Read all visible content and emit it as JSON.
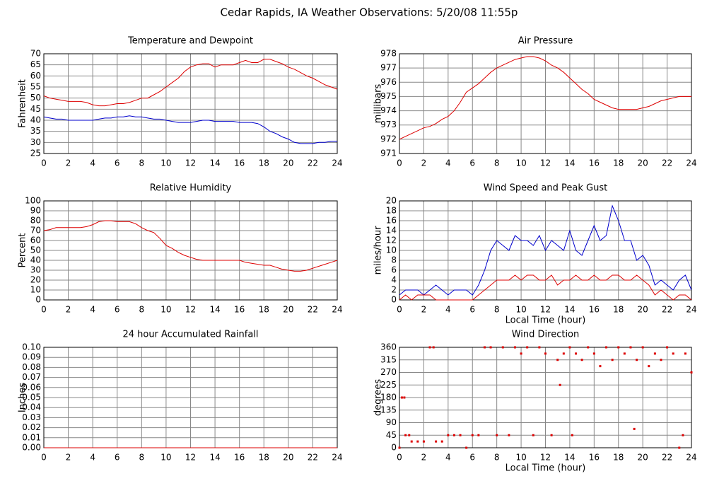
{
  "title": "Cedar Rapids, IA Weather Observations: 5/20/08 11:55p",
  "chart_data": [
    {
      "type": "line",
      "title": "Temperature and Dewpoint",
      "ylabel": "Fahrenheit",
      "x": [
        0,
        0.5,
        1,
        1.5,
        2,
        2.5,
        3,
        3.5,
        4,
        4.5,
        5,
        5.5,
        6,
        6.5,
        7,
        7.5,
        8,
        8.5,
        9,
        9.5,
        10,
        10.5,
        11,
        11.5,
        12,
        12.5,
        13,
        13.5,
        14,
        14.5,
        15,
        15.5,
        16,
        16.5,
        17,
        17.5,
        18,
        18.5,
        19,
        19.5,
        20,
        20.5,
        21,
        21.5,
        22,
        22.5,
        23,
        23.5,
        24
      ],
      "series": [
        {
          "color": "#dd0000",
          "values": [
            51,
            50,
            49.5,
            49,
            48.5,
            48.5,
            48.5,
            48,
            47,
            46.5,
            46.5,
            47,
            47.5,
            47.5,
            48,
            49,
            50,
            50,
            51.5,
            53,
            55,
            57,
            59,
            62,
            64,
            65,
            65.5,
            65.5,
            64,
            65,
            65,
            65,
            66,
            67,
            66,
            66,
            67.5,
            67.5,
            66.5,
            65.5,
            64,
            63,
            61.5,
            60,
            59,
            57.5,
            56,
            55,
            54
          ]
        },
        {
          "color": "#0000cc",
          "values": [
            41.5,
            41,
            40.5,
            40.5,
            40,
            40,
            40,
            40,
            40,
            40.5,
            41,
            41,
            41.5,
            41.5,
            42,
            41.5,
            41.5,
            41,
            40.5,
            40.5,
            40,
            39.5,
            39,
            39,
            39,
            39.5,
            40,
            40,
            39.5,
            39.5,
            39.5,
            39.5,
            39,
            39,
            39,
            38.5,
            37,
            35,
            34,
            32.5,
            31.5,
            30,
            29.5,
            29.5,
            29.5,
            30,
            30,
            30.5,
            30.5
          ]
        }
      ],
      "xlim": [
        0,
        24
      ],
      "xticks": [
        0,
        2,
        4,
        6,
        8,
        10,
        12,
        14,
        16,
        18,
        20,
        22,
        24
      ],
      "ylim": [
        25,
        70
      ],
      "yticks": [
        25,
        30,
        35,
        40,
        45,
        50,
        55,
        60,
        65,
        70
      ],
      "grid": true
    },
    {
      "type": "line",
      "title": "Air Pressure",
      "ylabel": "millibars",
      "x": [
        0,
        0.5,
        1,
        1.5,
        2,
        2.5,
        3,
        3.5,
        4,
        4.5,
        5,
        5.5,
        6,
        6.5,
        7,
        7.5,
        8,
        8.5,
        9,
        9.5,
        10,
        10.5,
        11,
        11.5,
        12,
        12.5,
        13,
        13.5,
        14,
        14.5,
        15,
        15.5,
        16,
        16.5,
        17,
        17.5,
        18,
        18.5,
        19,
        19.5,
        20,
        20.5,
        21,
        21.5,
        22,
        22.5,
        23,
        23.5,
        24
      ],
      "series": [
        {
          "color": "#dd0000",
          "values": [
            972,
            972.2,
            972.4,
            972.6,
            972.8,
            972.9,
            973.1,
            973.4,
            973.6,
            974,
            974.6,
            975.3,
            975.6,
            975.9,
            976.3,
            976.7,
            977,
            977.2,
            977.4,
            977.6,
            977.7,
            977.8,
            977.8,
            977.7,
            977.5,
            977.2,
            977,
            976.7,
            976.3,
            975.9,
            975.5,
            975.2,
            974.8,
            974.6,
            974.4,
            974.2,
            974.1,
            974.1,
            974.1,
            974.1,
            974.2,
            974.3,
            974.5,
            974.7,
            974.8,
            974.9,
            975,
            975,
            975
          ]
        }
      ],
      "xlim": [
        0,
        24
      ],
      "xticks": [
        0,
        2,
        4,
        6,
        8,
        10,
        12,
        14,
        16,
        18,
        20,
        22,
        24
      ],
      "ylim": [
        971,
        978
      ],
      "yticks": [
        971,
        972,
        973,
        974,
        975,
        976,
        977,
        978
      ],
      "grid": true
    },
    {
      "type": "line",
      "title": "Relative Humidity",
      "ylabel": "Percent",
      "x": [
        0,
        0.5,
        1,
        1.5,
        2,
        2.5,
        3,
        3.5,
        4,
        4.5,
        5,
        5.5,
        6,
        6.5,
        7,
        7.5,
        8,
        8.5,
        9,
        9.5,
        10,
        10.5,
        11,
        11.5,
        12,
        12.5,
        13,
        13.5,
        14,
        14.5,
        15,
        15.5,
        16,
        16.5,
        17,
        17.5,
        18,
        18.5,
        19,
        19.5,
        20,
        20.5,
        21,
        21.5,
        22,
        22.5,
        23,
        23.5,
        24
      ],
      "series": [
        {
          "color": "#dd0000",
          "values": [
            70,
            71,
            73,
            73,
            73,
            73,
            73,
            74,
            76,
            79,
            80,
            80,
            79,
            79,
            79,
            77,
            73,
            70,
            68,
            62,
            55,
            52,
            48,
            45,
            43,
            41,
            40,
            40,
            40,
            40,
            40,
            40,
            40,
            38,
            37,
            36,
            35,
            35,
            33,
            31,
            30,
            29,
            29,
            30,
            32,
            34,
            36,
            38,
            40
          ]
        }
      ],
      "xlim": [
        0,
        24
      ],
      "xticks": [
        0,
        2,
        4,
        6,
        8,
        10,
        12,
        14,
        16,
        18,
        20,
        22,
        24
      ],
      "ylim": [
        0,
        100
      ],
      "yticks": [
        0,
        10,
        20,
        30,
        40,
        50,
        60,
        70,
        80,
        90,
        100
      ],
      "grid": true
    },
    {
      "type": "line",
      "title": "Wind Speed and Peak Gust",
      "ylabel": "miles/hour",
      "xlabel": "Local Time (hour)",
      "x": [
        0,
        0.5,
        1,
        1.5,
        2,
        2.5,
        3,
        3.5,
        4,
        4.5,
        5,
        5.5,
        6,
        6.5,
        7,
        7.5,
        8,
        8.5,
        9,
        9.5,
        10,
        10.5,
        11,
        11.5,
        12,
        12.5,
        13,
        13.5,
        14,
        14.5,
        15,
        15.5,
        16,
        16.5,
        17,
        17.5,
        18,
        18.5,
        19,
        19.5,
        20,
        20.5,
        21,
        21.5,
        22,
        22.5,
        23,
        23.5,
        24
      ],
      "series": [
        {
          "color": "#0000cc",
          "values": [
            1,
            2,
            2,
            2,
            1,
            2,
            3,
            2,
            1,
            2,
            2,
            2,
            1,
            3,
            6,
            10,
            12,
            11,
            10,
            13,
            12,
            12,
            11,
            13,
            10,
            12,
            11,
            10,
            14,
            10,
            9,
            12,
            15,
            12,
            13,
            19,
            16,
            12,
            12,
            8,
            9,
            7,
            3,
            4,
            3,
            2,
            4,
            5,
            2
          ]
        },
        {
          "color": "#dd0000",
          "values": [
            0,
            1,
            0,
            1,
            1,
            1,
            0,
            0,
            0,
            0,
            0,
            0,
            0,
            1,
            2,
            3,
            4,
            4,
            4,
            5,
            4,
            5,
            5,
            4,
            4,
            5,
            3,
            4,
            4,
            5,
            4,
            4,
            5,
            4,
            4,
            5,
            5,
            4,
            4,
            5,
            4,
            3,
            1,
            2,
            1,
            0,
            1,
            1,
            0
          ]
        }
      ],
      "xlim": [
        0,
        24
      ],
      "xticks": [
        0,
        2,
        4,
        6,
        8,
        10,
        12,
        14,
        16,
        18,
        20,
        22,
        24
      ],
      "ylim": [
        0,
        20
      ],
      "yticks": [
        0,
        2,
        4,
        6,
        8,
        10,
        12,
        14,
        16,
        18,
        20
      ],
      "grid": true
    },
    {
      "type": "line",
      "title": "24 hour Accumulated Rainfall",
      "ylabel": "Inches",
      "x": [
        0,
        24
      ],
      "series": [
        {
          "color": "#dd0000",
          "values": [
            0,
            0
          ]
        }
      ],
      "xlim": [
        0,
        24
      ],
      "xticks": [
        0,
        2,
        4,
        6,
        8,
        10,
        12,
        14,
        16,
        18,
        20,
        22,
        24
      ],
      "ylim": [
        0,
        0.1
      ],
      "yticks": [
        {
          "value": 0,
          "label": "0.00"
        },
        0.01,
        0.02,
        0.03,
        0.04,
        0.05,
        0.06,
        0.07,
        0.08,
        0.09,
        {
          "value": 0.1,
          "label": "0.10"
        }
      ],
      "grid": true
    },
    {
      "type": "scatter",
      "title": "Wind Direction",
      "ylabel": "degrees",
      "xlabel": "Local Time (hour)",
      "x": [
        0,
        0.2,
        0.4,
        0.5,
        0.8,
        1,
        1.5,
        2,
        2.5,
        2.8,
        3,
        3.5,
        4,
        4.5,
        5,
        5.5,
        6,
        6.5,
        7,
        7.5,
        8,
        8.5,
        9,
        9.5,
        10,
        10.5,
        11,
        11.5,
        12,
        12.5,
        13,
        13.2,
        13.5,
        14,
        14.2,
        14.5,
        15,
        15.5,
        16,
        16.5,
        17,
        17.5,
        18,
        18.5,
        19,
        19.3,
        19.5,
        20,
        20.5,
        21,
        21.5,
        22,
        22.5,
        23,
        23.3,
        23.5,
        24
      ],
      "series": [
        {
          "color": "#dd0000",
          "values": [
            0,
            180,
            180,
            45,
            45,
            22.5,
            22.5,
            22.5,
            360,
            360,
            22.5,
            22.5,
            45,
            45,
            45,
            0,
            45,
            45,
            360,
            360,
            45,
            360,
            45,
            360,
            337.5,
            360,
            45,
            360,
            337.5,
            45,
            315,
            225,
            337.5,
            360,
            45,
            337.5,
            315,
            360,
            337.5,
            292.5,
            360,
            315,
            360,
            337.5,
            360,
            67.5,
            315,
            360,
            292.5,
            337.5,
            315,
            360,
            337.5,
            0,
            45,
            337.5,
            270
          ]
        }
      ],
      "xlim": [
        0,
        24
      ],
      "xticks": [
        0,
        2,
        4,
        6,
        8,
        10,
        12,
        14,
        16,
        18,
        20,
        22,
        24
      ],
      "ylim": [
        0,
        360
      ],
      "yticks": [
        0,
        45,
        90,
        135,
        180,
        225,
        270,
        315,
        360
      ],
      "grid": true
    }
  ]
}
